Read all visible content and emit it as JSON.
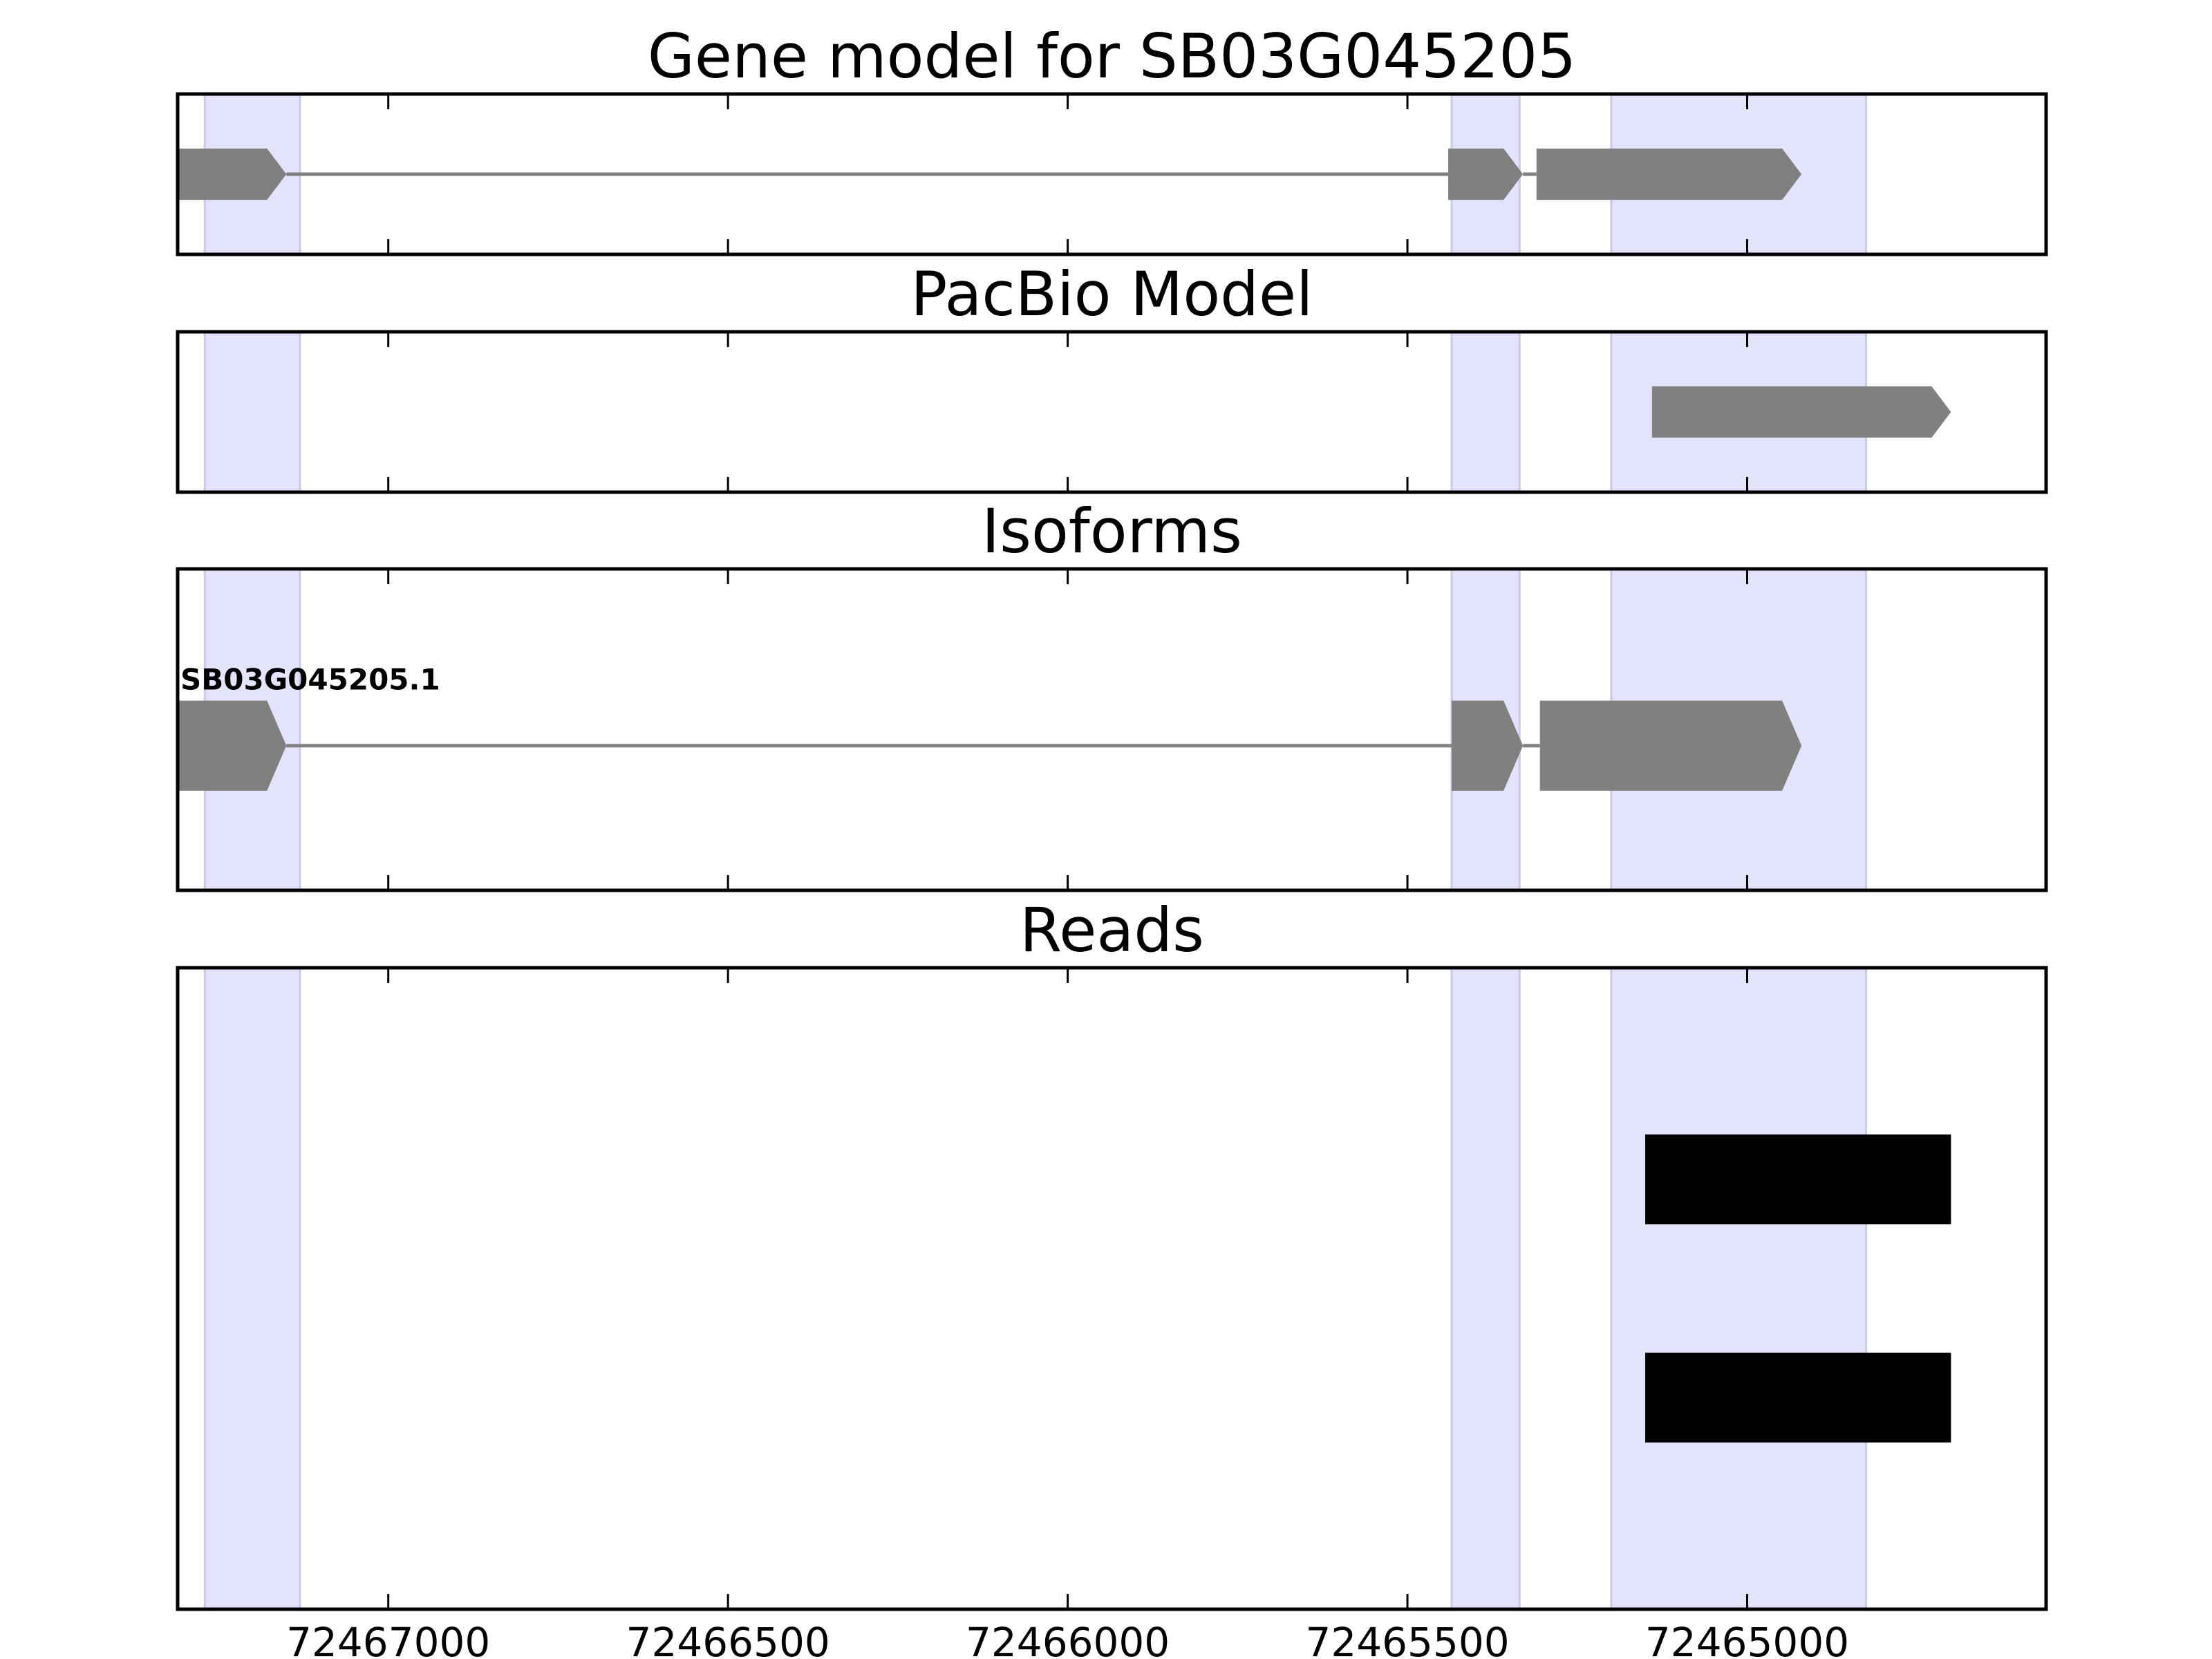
{
  "chart_data": {
    "type": "gene-track",
    "x_axis": {
      "direction": "reversed",
      "xlim": [
        72467310,
        72464560
      ],
      "ticks": [
        72467000,
        72466500,
        72466000,
        72465500,
        72465000
      ],
      "tick_labels": [
        "72467000",
        "72466500",
        "72466000",
        "72465500",
        "72465000"
      ]
    },
    "highlight_regions": [
      [
        72467270,
        72467130
      ],
      [
        72465435,
        72465335
      ],
      [
        72465200,
        72464825
      ]
    ],
    "highlight_color": "#e3e3fb",
    "feature_color": "#808080",
    "read_color": "#000000",
    "panels": [
      {
        "title": "Gene model for SB03G045205",
        "kind": "gene",
        "row_y": 0.5,
        "thickness": 0.32,
        "exons": [
          [
            72467310,
            72467150
          ],
          [
            72465440,
            72465330
          ],
          [
            72465310,
            72464920
          ]
        ]
      },
      {
        "title": "PacBio Model",
        "kind": "gene",
        "row_y": 0.5,
        "thickness": 0.32,
        "exons": [
          [
            72465140,
            72464700
          ]
        ]
      },
      {
        "title": "Isoforms",
        "kind": "isoform",
        "row_y": 0.55,
        "thickness": 0.28,
        "label": "SB03G045205.1",
        "exons": [
          [
            72467310,
            72467150
          ],
          [
            72465435,
            72465330
          ],
          [
            72465305,
            72464920
          ]
        ]
      },
      {
        "title": "Reads",
        "kind": "reads",
        "thickness": 0.14,
        "reads": [
          {
            "row_y": 0.33,
            "span": [
              72465150,
              72464700
            ]
          },
          {
            "row_y": 0.67,
            "span": [
              72465150,
              72464700
            ]
          }
        ]
      }
    ]
  }
}
